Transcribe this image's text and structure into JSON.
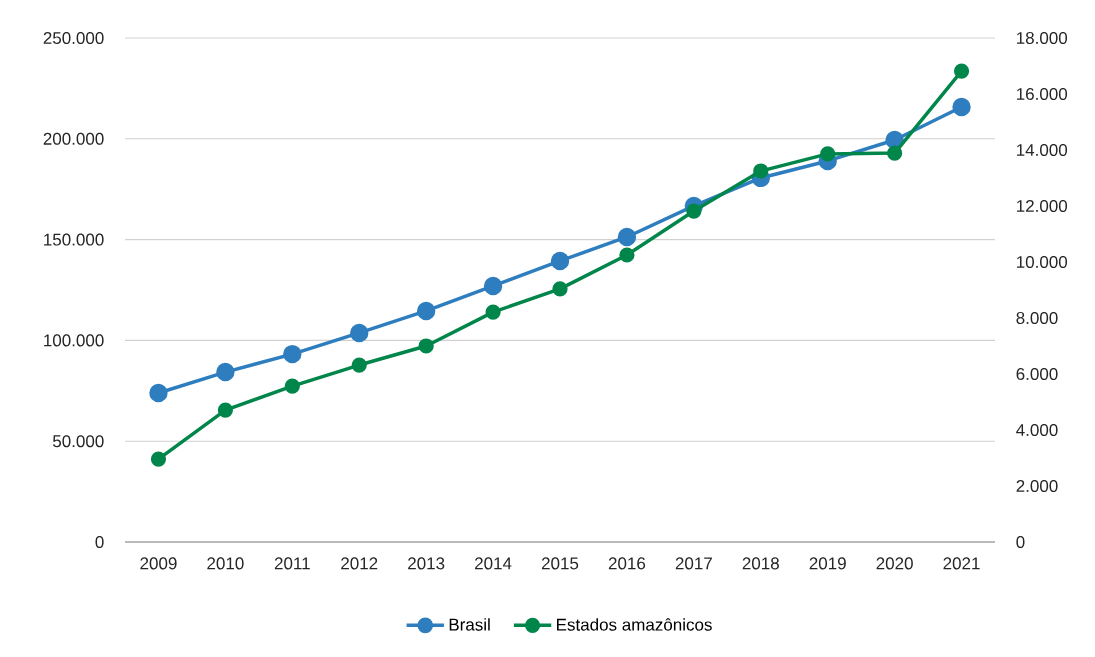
{
  "chart_data": {
    "type": "line",
    "categories": [
      "2009",
      "2010",
      "2011",
      "2012",
      "2013",
      "2014",
      "2015",
      "2016",
      "2017",
      "2018",
      "2019",
      "2020",
      "2021"
    ],
    "series": [
      {
        "name": "Brasil",
        "color": "#2e7ebf",
        "values": [
          73900,
          84300,
          93200,
          103700,
          114600,
          127000,
          139400,
          151300,
          166700,
          180600,
          189000,
          199400,
          215800
        ]
      },
      {
        "name": "Estados amazônicos",
        "color": "#00864a",
        "axis": "y2",
        "values": [
          2960,
          4710,
          5570,
          6320,
          7000,
          8210,
          9040,
          10250,
          11820,
          13250,
          13860,
          13890,
          16820
        ]
      }
    ],
    "ylim": [
      0,
      250000
    ],
    "yticks": [
      {
        "value": 0,
        "label": "0"
      },
      {
        "value": 50000,
        "label": "50.000"
      },
      {
        "value": 100000,
        "label": "100.000"
      },
      {
        "value": 150000,
        "label": "150.000"
      },
      {
        "value": 200000,
        "label": "200.000"
      },
      {
        "value": 250000,
        "label": "250.000"
      }
    ],
    "y2lim": [
      0,
      18000
    ],
    "y2ticks": [
      {
        "value": 0,
        "label": "0"
      },
      {
        "value": 2000,
        "label": "2.000"
      },
      {
        "value": 4000,
        "label": "4.000"
      },
      {
        "value": 6000,
        "label": "6.000"
      },
      {
        "value": 8000,
        "label": "8.000"
      },
      {
        "value": 10000,
        "label": "10.000"
      },
      {
        "value": 12000,
        "label": "12.000"
      },
      {
        "value": 14000,
        "label": "14.000"
      },
      {
        "value": 16000,
        "label": "16.000"
      },
      {
        "value": 18000,
        "label": "18.000"
      }
    ],
    "grid": "y",
    "legend": "bottom",
    "marker": "circle",
    "line_style": "solid"
  }
}
